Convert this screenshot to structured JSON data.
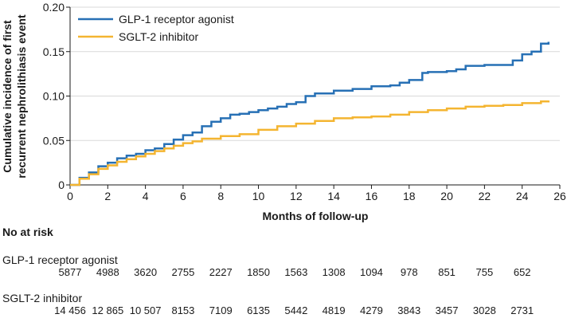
{
  "chart_data": {
    "type": "line",
    "step": true,
    "xlabel": "Months of follow-up",
    "ylabel_lines": [
      "Cumulative incidence of first",
      "recurrent nephrolithiasis event"
    ],
    "xlim": [
      0,
      26
    ],
    "ylim": [
      0,
      0.2
    ],
    "xticks": [
      "0",
      "2",
      "4",
      "6",
      "8",
      "10",
      "12",
      "14",
      "16",
      "18",
      "20",
      "22",
      "24",
      "26"
    ],
    "yticks": [
      "0",
      "0.05",
      "0.10",
      "0.15",
      "0.20"
    ],
    "legend_position": "top-left",
    "series": [
      {
        "name": "GLP-1 receptor agonist",
        "color": "#2770b5",
        "x": [
          0,
          0.5,
          1,
          1.5,
          2,
          2.5,
          3,
          3.5,
          4,
          4.5,
          5,
          5.5,
          6,
          6.5,
          7,
          7.5,
          8,
          8.5,
          9,
          9.5,
          10,
          10.5,
          11,
          11.5,
          12,
          12.5,
          13,
          14,
          15,
          16,
          17,
          17.5,
          18,
          18.7,
          19,
          20,
          20.5,
          21,
          22,
          23,
          23.5,
          24,
          24.5,
          25,
          25.4
        ],
        "y": [
          0,
          0.008,
          0.014,
          0.021,
          0.025,
          0.03,
          0.033,
          0.035,
          0.039,
          0.041,
          0.046,
          0.051,
          0.056,
          0.059,
          0.066,
          0.071,
          0.075,
          0.079,
          0.08,
          0.082,
          0.084,
          0.086,
          0.088,
          0.091,
          0.093,
          0.1,
          0.103,
          0.106,
          0.108,
          0.111,
          0.112,
          0.115,
          0.118,
          0.126,
          0.127,
          0.128,
          0.13,
          0.134,
          0.135,
          0.135,
          0.14,
          0.147,
          0.15,
          0.159,
          0.161
        ]
      },
      {
        "name": "SGLT-2 inhibitor",
        "color": "#f4b531",
        "x": [
          0,
          0.5,
          1,
          1.5,
          2,
          2.5,
          3,
          3.5,
          4,
          4.5,
          5,
          5.5,
          6,
          6.5,
          7,
          8,
          9,
          10,
          11,
          12,
          13,
          14,
          15,
          16,
          17,
          18,
          19,
          20,
          21,
          22,
          23,
          24,
          25,
          25.4
        ],
        "y": [
          0,
          0.007,
          0.012,
          0.018,
          0.022,
          0.026,
          0.029,
          0.032,
          0.035,
          0.038,
          0.041,
          0.044,
          0.047,
          0.049,
          0.052,
          0.055,
          0.057,
          0.062,
          0.066,
          0.069,
          0.072,
          0.075,
          0.076,
          0.077,
          0.079,
          0.082,
          0.084,
          0.086,
          0.088,
          0.089,
          0.09,
          0.092,
          0.094,
          0.095
        ]
      }
    ]
  },
  "risk_table": {
    "heading": "No at risk",
    "groups": [
      {
        "name": "GLP-1 receptor agonist",
        "values": [
          "5877",
          "4988",
          "3620",
          "2755",
          "2227",
          "1850",
          "1563",
          "1308",
          "1094",
          "978",
          "851",
          "755",
          "652"
        ]
      },
      {
        "name": "SGLT-2 inhibitor",
        "values": [
          "14 456",
          "12 865",
          "10 507",
          "8153",
          "7109",
          "6135",
          "5442",
          "4819",
          "4279",
          "3843",
          "3457",
          "3028",
          "2731"
        ]
      }
    ]
  }
}
